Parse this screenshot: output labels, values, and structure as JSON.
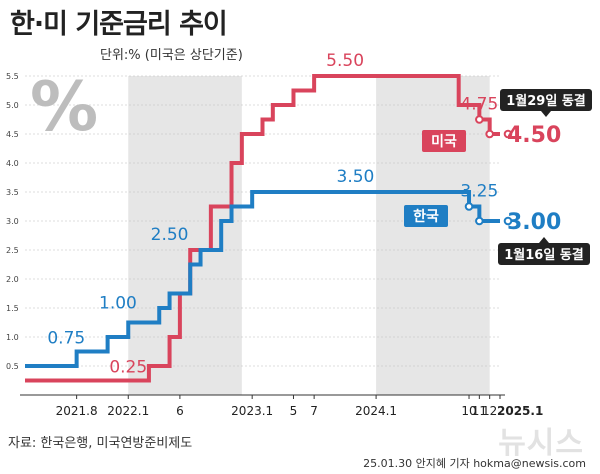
{
  "header": {
    "title": "한·미 기준금리 추이",
    "unit": "단위:% (미국은 상단기준)"
  },
  "footer": {
    "source": "자료: 한국은행, 미국연방준비제도",
    "credit": "25.01.30 안지혜 기자 hokma@newsis.com",
    "watermark": "뉴시스"
  },
  "decoration": {
    "percent_icon": "%"
  },
  "colors": {
    "us": "#d9445c",
    "korea": "#1f7ec4",
    "shade": "#e6e6e6",
    "callout_bg": "#222222"
  },
  "chart_data": {
    "type": "line",
    "xlabel": "",
    "ylabel": "",
    "ylim": [
      0,
      5.5
    ],
    "y_ticks": [
      "0.5",
      "1.0",
      "1.5",
      "2.0",
      "2.5",
      "3.0",
      "3.5",
      "4.0",
      "4.5",
      "5.0",
      "5.5"
    ],
    "x_tick_labels": [
      "2021.8",
      "2022.1",
      "6",
      "2023.1",
      "5",
      "7",
      "2024.1",
      "10",
      "11",
      "12",
      "2025.1"
    ],
    "x_tick_dates": [
      "2021-08",
      "2022-01",
      "2022-06",
      "2023-01",
      "2023-05",
      "2023-07",
      "2024-01",
      "2024-10",
      "2024-11",
      "2024-12",
      "2025-01"
    ],
    "shaded_periods": [
      [
        "2022-01",
        "2022-12"
      ],
      [
        "2024-01",
        "2024-12"
      ]
    ],
    "grid": true,
    "series": [
      {
        "name": "미국",
        "key": "us",
        "step_points": [
          [
            "2021-03",
            0.25
          ],
          [
            "2022-03",
            0.5
          ],
          [
            "2022-05",
            1.0
          ],
          [
            "2022-06",
            1.75
          ],
          [
            "2022-07",
            2.5
          ],
          [
            "2022-09",
            3.25
          ],
          [
            "2022-11",
            4.0
          ],
          [
            "2022-12",
            4.5
          ],
          [
            "2023-02",
            4.75
          ],
          [
            "2023-03",
            5.0
          ],
          [
            "2023-05",
            5.25
          ],
          [
            "2023-07",
            5.5
          ],
          [
            "2024-09",
            5.0
          ],
          [
            "2024-11",
            4.75
          ],
          [
            "2024-12",
            4.5
          ],
          [
            "2025-01",
            4.5
          ]
        ],
        "value_labels": [
          "0.25",
          "5.50",
          "4.75"
        ],
        "end_label": "4.50",
        "callout": "1월29일 동결"
      },
      {
        "name": "한국",
        "key": "korea",
        "step_points": [
          [
            "2021-03",
            0.5
          ],
          [
            "2021-08",
            0.75
          ],
          [
            "2021-11",
            1.0
          ],
          [
            "2022-01",
            1.25
          ],
          [
            "2022-04",
            1.5
          ],
          [
            "2022-05",
            1.75
          ],
          [
            "2022-07",
            2.25
          ],
          [
            "2022-08",
            2.5
          ],
          [
            "2022-10",
            3.0
          ],
          [
            "2022-11",
            3.25
          ],
          [
            "2023-01",
            3.5
          ],
          [
            "2024-10",
            3.25
          ],
          [
            "2024-11",
            3.0
          ],
          [
            "2025-01",
            3.0
          ]
        ],
        "value_labels": [
          "0.75",
          "1.00",
          "2.50",
          "3.50",
          "3.25"
        ],
        "end_label": "3.00",
        "callout": "1월16일 동결"
      }
    ]
  }
}
